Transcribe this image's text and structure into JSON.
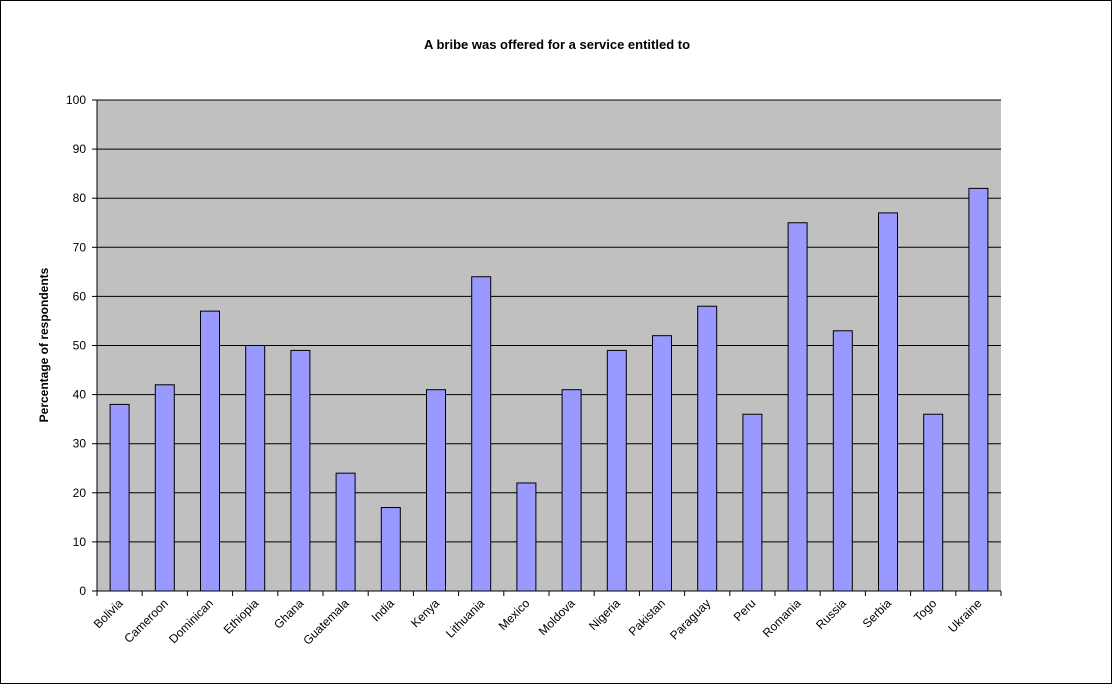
{
  "chart_data": {
    "type": "bar",
    "title": "A bribe was offered for a service entitled to",
    "xlabel": "",
    "ylabel": "Percentage of respondents",
    "categories": [
      "Bolivia",
      "Cameroon",
      "Dominican",
      "Ethiopia",
      "Ghana",
      "Guatemala",
      "India",
      "Kenya",
      "Lithuania",
      "Mexico",
      "Moldova",
      "Nigeria",
      "Pakistan",
      "Paraguay",
      "Peru",
      "Romania",
      "Russia",
      "Serbia",
      "Togo",
      "Ukraine"
    ],
    "values": [
      38,
      42,
      57,
      50,
      49,
      24,
      17,
      41,
      64,
      22,
      41,
      49,
      52,
      58,
      36,
      75,
      53,
      77,
      36,
      82
    ],
    "ylim": [
      0,
      100
    ],
    "yticks": [
      0,
      10,
      20,
      30,
      40,
      50,
      60,
      70,
      80,
      90,
      100
    ],
    "grid": true,
    "legend": "none",
    "colors": {
      "bar_fill": "#9999ff",
      "bar_stroke": "#000000",
      "plot_background": "#c0c0c0",
      "gridline": "#000000"
    }
  }
}
